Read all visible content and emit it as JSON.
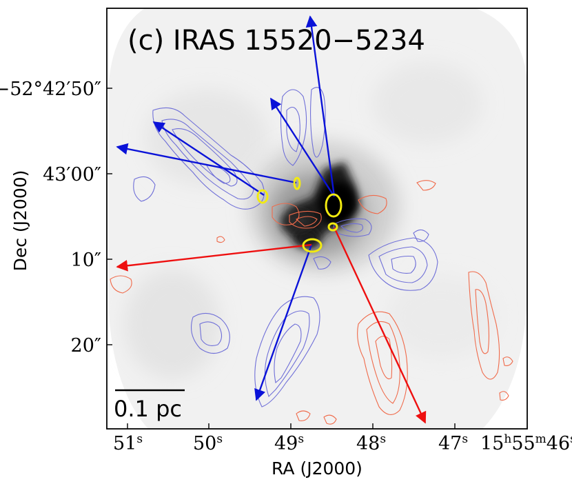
{
  "figure": {
    "panel_title": "(c) IRAS 15520−5234",
    "x_axis_label": "RA (J2000)",
    "y_axis_label": "Dec (J2000)",
    "x_ticks": [
      {
        "id": "51",
        "main": "51",
        "sup": "s"
      },
      {
        "id": "50",
        "main": "50",
        "sup": "s"
      },
      {
        "id": "49",
        "main": "49",
        "sup": "s"
      },
      {
        "id": "48",
        "main": "48",
        "sup": "s"
      },
      {
        "id": "47",
        "main": "47",
        "sup": "s"
      },
      {
        "id": "46",
        "main": "15",
        "parts": [
          "h",
          "55",
          "m",
          "46",
          "s"
        ]
      }
    ],
    "y_ticks": [
      {
        "id": "42m50",
        "text": "−52°42′50″"
      },
      {
        "id": "43m00",
        "text": "43′00″"
      },
      {
        "id": "10",
        "text": "10″"
      },
      {
        "id": "20",
        "text": "20″"
      }
    ],
    "scale_bar": {
      "label": "0.1 pc"
    },
    "colors": {
      "blue_outflow": "#0a12d8",
      "red_outflow": "#ee0f0f",
      "blue_contour": "#6f6fd8",
      "red_contour": "#f06a4a",
      "core_ellipse": "#f2ea10",
      "frame": "#000000"
    }
  }
}
